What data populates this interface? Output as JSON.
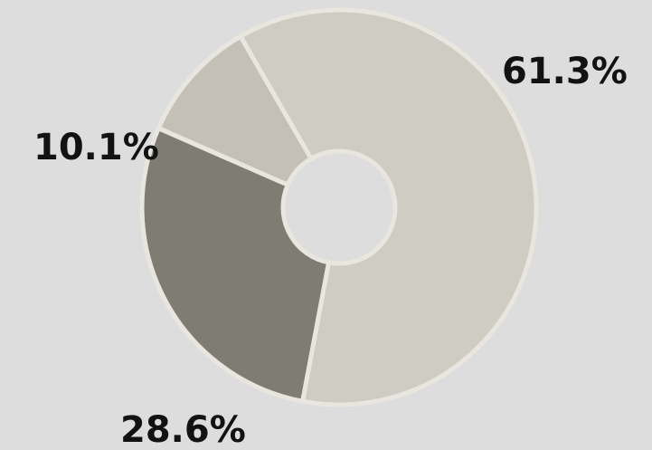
{
  "chart_data": {
    "type": "pie",
    "variant": "donut",
    "title": "",
    "slices": [
      {
        "label": "61.3%",
        "value": 61.3,
        "color": "#cfccc3"
      },
      {
        "label": "28.6%",
        "value": 28.6,
        "color": "#7f7c74"
      },
      {
        "label": "10.1%",
        "value": 10.1,
        "color": "#c4c0b7"
      }
    ],
    "legend": "none",
    "background": "#dddddd"
  }
}
